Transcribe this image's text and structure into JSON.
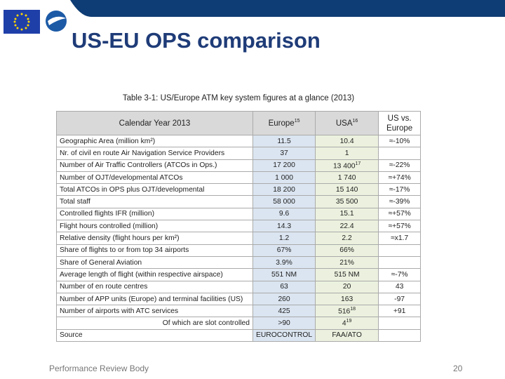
{
  "slide": {
    "title": "US-EU OPS comparison",
    "caption": "Table 3-1: US/Europe ATM key system figures at a glance (2013)",
    "footer": "Performance Review Body",
    "page": "20"
  },
  "table": {
    "header": [
      "Calendar Year 2013",
      {
        "text": "Europe",
        "sup": "15"
      },
      {
        "text": "USA",
        "sup": "16"
      },
      "US vs. Europe"
    ],
    "rows": [
      [
        "Geographic Area (million km²)",
        "11.5",
        "10.4",
        "≈-10%"
      ],
      [
        "Nr. of civil en route Air Navigation Service Providers",
        "37",
        "1",
        null
      ],
      [
        "Number of Air Traffic Controllers (ATCOs in Ops.)",
        "17 200",
        {
          "text": "13 400",
          "sup": "17"
        },
        "≈-22%"
      ],
      [
        "Number of OJT/developmental ATCOs",
        "1 000",
        "1 740",
        "≈+74%"
      ],
      [
        "Total ATCOs in OPS plus OJT/developmental",
        "18 200",
        "15 140",
        "≈-17%"
      ],
      [
        "Total staff",
        "58 000",
        "35 500",
        "≈-39%"
      ],
      [
        "Controlled flights IFR (million)",
        "9.6",
        "15.1",
        "≈+57%"
      ],
      [
        "Flight hours controlled (million)",
        "14.3",
        "22.4",
        "≈+57%"
      ],
      [
        "Relative density (flight hours per km²)",
        "1.2",
        "2.2",
        "≈x1.7"
      ],
      [
        "Share of flights to or from top 34 airports",
        "67%",
        "66%",
        null
      ],
      [
        "Share of General Aviation",
        "3.9%",
        "21%",
        null
      ],
      [
        "Average length of flight (within respective airspace)",
        "551 NM",
        "515 NM",
        "≈-7%"
      ],
      [
        "Number of en route centres",
        "63",
        "20",
        "43"
      ],
      [
        "Number of APP units (Europe) and terminal facilities (US)",
        "260",
        "163",
        "-97"
      ],
      [
        "Number of airports with ATC services",
        "425",
        {
          "text": "516",
          "sup": "18"
        },
        "+91"
      ],
      [
        "Of which are slot controlled",
        ">90",
        {
          "text": "4",
          "sup": "19"
        },
        null
      ],
      [
        "Source",
        "EUROCONTROL",
        "FAA/ATO",
        null
      ]
    ]
  }
}
